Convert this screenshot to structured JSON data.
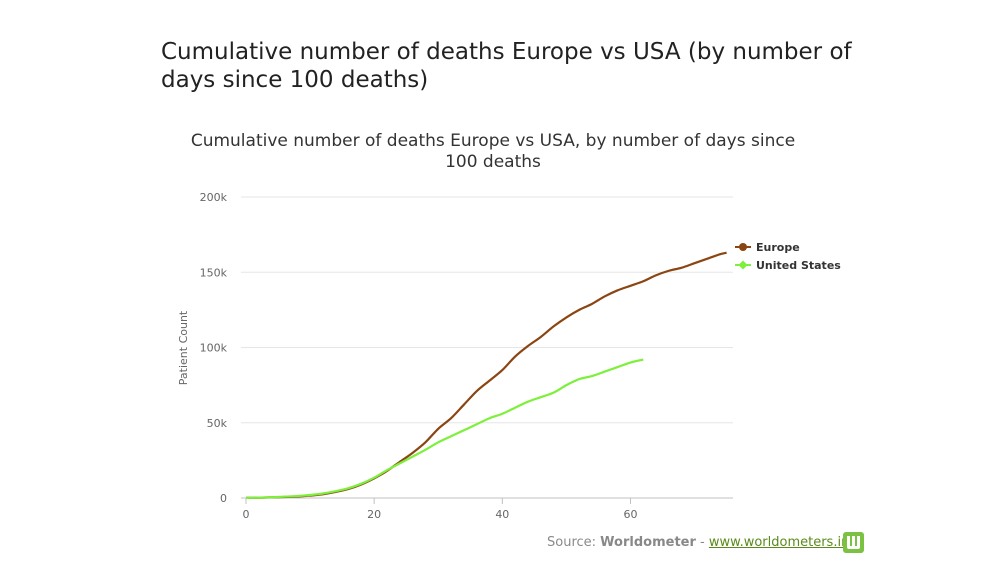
{
  "page_title": "Cumulative number of deaths Europe vs USA (by number of days since 100 deaths)",
  "source": {
    "prefix": "Source:",
    "brand": "Worldometer",
    "separator": "-",
    "link_text": "www.worldometers.info"
  },
  "colors": {
    "europe": "#8b4513",
    "usa": "#7cf03a",
    "grid": "#e6e6e6",
    "axis": "#c0c0c0",
    "text": "#333333",
    "tick": "#666666",
    "logo": "#7bc142"
  },
  "chart_data": {
    "type": "line",
    "title": "Cumulative number of deaths Europe vs USA, by number of days since 100 deaths",
    "title_lines": [
      "Cumulative number of deaths Europe vs USA, by number of days since",
      "100 deaths"
    ],
    "xlabel": "",
    "ylabel": "Patient Count",
    "xlim": [
      0,
      76
    ],
    "ylim": [
      0,
      200000
    ],
    "x_ticks": [
      0,
      20,
      40,
      60
    ],
    "x_tick_labels": [
      "0",
      "20",
      "40",
      "60"
    ],
    "y_ticks": [
      0,
      50000,
      100000,
      150000,
      200000
    ],
    "y_tick_labels": [
      "0",
      "50k",
      "100k",
      "150k",
      "200k"
    ],
    "grid": true,
    "legend_position": "right",
    "series": [
      {
        "name": "Europe",
        "x": [
          0,
          4,
          8,
          10,
          12,
          14,
          16,
          18,
          20,
          22,
          24,
          26,
          28,
          30,
          32,
          34,
          36,
          38,
          40,
          42,
          44,
          46,
          48,
          50,
          52,
          54,
          56,
          58,
          60,
          62,
          64,
          66,
          68,
          70,
          72,
          74,
          75
        ],
        "values": [
          100,
          400,
          1000,
          1600,
          2500,
          4000,
          6000,
          9000,
          13000,
          18000,
          24000,
          30000,
          37000,
          46000,
          53000,
          62000,
          71000,
          78000,
          85000,
          94000,
          101000,
          107000,
          114000,
          120000,
          125000,
          129000,
          134000,
          138000,
          141000,
          144000,
          148000,
          151000,
          153000,
          156000,
          159000,
          162000,
          163000
        ]
      },
      {
        "name": "United States",
        "x": [
          0,
          4,
          8,
          10,
          12,
          14,
          16,
          18,
          20,
          22,
          24,
          26,
          28,
          30,
          32,
          34,
          36,
          38,
          40,
          42,
          44,
          46,
          48,
          50,
          52,
          54,
          56,
          58,
          60,
          62
        ],
        "values": [
          100,
          500,
          1300,
          2000,
          3000,
          4500,
          6500,
          9500,
          13500,
          18500,
          23000,
          27500,
          32000,
          37000,
          41000,
          45000,
          49000,
          53000,
          56000,
          60000,
          64000,
          67000,
          70000,
          75000,
          79000,
          81000,
          84000,
          87000,
          90000,
          92000
        ]
      }
    ]
  }
}
